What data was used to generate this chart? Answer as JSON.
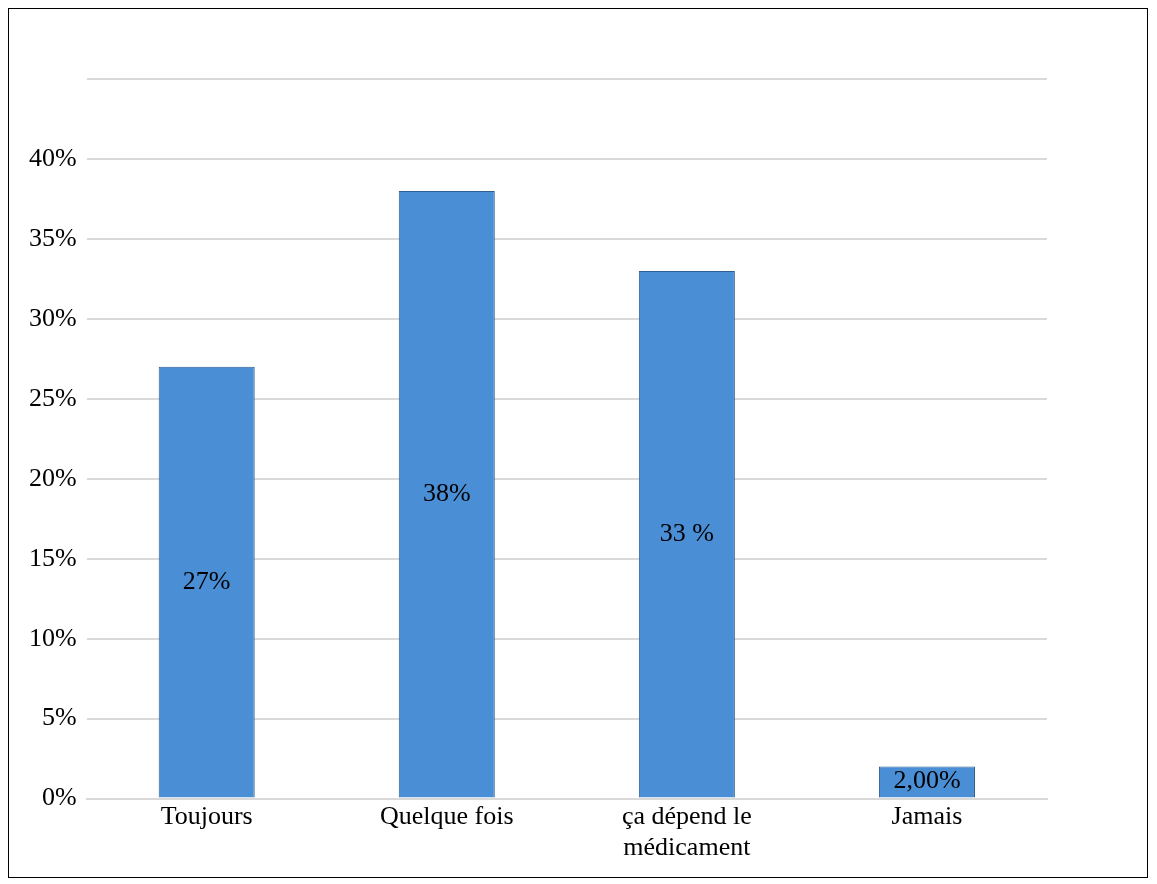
{
  "chart_data": {
    "type": "bar",
    "categories": [
      "Toujours",
      "Quelque fois",
      "ça dépend le médicament",
      "Jamais"
    ],
    "values": [
      27,
      38,
      33,
      2
    ],
    "value_labels": [
      "27%",
      "38%",
      "33 %",
      "2,00%"
    ],
    "color": "#4a8fd6",
    "ylim": [
      0,
      45
    ],
    "yticks": [
      {
        "value": 0,
        "label": "0%"
      },
      {
        "value": 5,
        "label": "5%"
      },
      {
        "value": 10,
        "label": "10%"
      },
      {
        "value": 15,
        "label": "15%"
      },
      {
        "value": 20,
        "label": "20%"
      },
      {
        "value": 25,
        "label": "25%"
      },
      {
        "value": 30,
        "label": "30%"
      },
      {
        "value": 35,
        "label": "35%"
      },
      {
        "value": 40,
        "label": "40%"
      },
      {
        "value": 45,
        "label": null
      }
    ],
    "grid": "y",
    "legend": false
  }
}
